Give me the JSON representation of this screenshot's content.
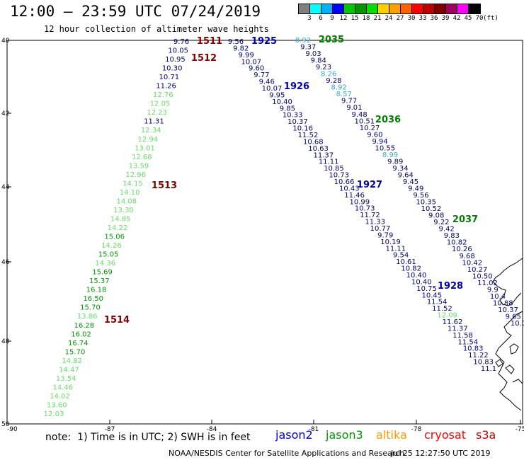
{
  "title": "12:00 – 23:59 UTC 07/24/2019",
  "subtitle": "12 hour collection of altimeter wave heights",
  "legend": {
    "colors": [
      "#808080",
      "#00ffff",
      "#00b0ff",
      "#0000ff",
      "#00c800",
      "#009600",
      "#00e000",
      "#ffd000",
      "#ffa000",
      "#ff6000",
      "#ff0000",
      "#c00000",
      "#800000",
      "#a00060",
      "#ff00ff",
      "#000000"
    ],
    "labels": [
      "3",
      "6",
      "9",
      "12",
      "15",
      "18",
      "21",
      "24",
      "27",
      "30",
      "33",
      "36",
      "39",
      "42",
      "45",
      "70",
      "(ft)"
    ]
  },
  "axes": {
    "lat_labels": [
      "40",
      "42",
      "44",
      "46",
      "48",
      "50"
    ],
    "lon_labels": [
      "-90",
      "-87",
      "-84",
      "-81",
      "-78",
      "-75"
    ]
  },
  "note": "note:  1) Time is in UTC; 2) SWH is in feet",
  "satellites": [
    {
      "name": "jason2",
      "color": "#0000cc"
    },
    {
      "name": "jason3",
      "color": "#009900"
    },
    {
      "name": "altika",
      "color": "#ff9900"
    },
    {
      "name": "cryosat",
      "color": "#ff0000"
    },
    {
      "name": "s3a",
      "color": "#cc0000"
    }
  ],
  "credit": "NOAA/NESDIS Center for Satellite Applications and Research",
  "generated": "Jul 25 12:27:50 UTC 2019",
  "time_labels": [
    {
      "text": "1511",
      "color": "#800000"
    },
    {
      "text": "1512",
      "color": "#800000"
    },
    {
      "text": "1513",
      "color": "#800000"
    },
    {
      "text": "1514",
      "color": "#800000"
    },
    {
      "text": "1925",
      "color": "#0000aa"
    },
    {
      "text": "1926",
      "color": "#0000aa"
    },
    {
      "text": "1927",
      "color": "#0000aa"
    },
    {
      "text": "1928",
      "color": "#0000aa"
    },
    {
      "text": "2035",
      "color": "#008000"
    },
    {
      "text": "2036",
      "color": "#008000"
    },
    {
      "text": "2037",
      "color": "#008000"
    }
  ],
  "tracks": [
    {
      "name": "track-1511",
      "values": [
        {
          "v": "9.76",
          "c": "#000080"
        },
        {
          "v": "10.05",
          "c": "#000080"
        },
        {
          "v": "10.95",
          "c": "#000080"
        },
        {
          "v": "10.30",
          "c": "#000080"
        },
        {
          "v": "10.71",
          "c": "#000080"
        },
        {
          "v": "11.26",
          "c": "#000080"
        },
        {
          "v": "12.76",
          "c": "#66dd66"
        },
        {
          "v": "12.05",
          "c": "#66dd66"
        },
        {
          "v": "12.23",
          "c": "#66dd66"
        },
        {
          "v": "11.31",
          "c": "#000080"
        },
        {
          "v": "12.34",
          "c": "#66dd66"
        },
        {
          "v": "12.94",
          "c": "#66dd66"
        },
        {
          "v": "13.01",
          "c": "#66dd66"
        },
        {
          "v": "12.68",
          "c": "#66dd66"
        },
        {
          "v": "13.59",
          "c": "#66dd66"
        },
        {
          "v": "12.96",
          "c": "#66dd66"
        },
        {
          "v": "14.15",
          "c": "#66dd66"
        },
        {
          "v": "14.10",
          "c": "#66dd66"
        },
        {
          "v": "14.08",
          "c": "#66dd66"
        },
        {
          "v": "13.30",
          "c": "#66dd66"
        },
        {
          "v": "14.85",
          "c": "#66dd66"
        },
        {
          "v": "14.22",
          "c": "#66dd66"
        },
        {
          "v": "15.06",
          "c": "#009900"
        },
        {
          "v": "14.26",
          "c": "#66dd66"
        },
        {
          "v": "15.05",
          "c": "#009900"
        },
        {
          "v": "14.36",
          "c": "#66dd66"
        },
        {
          "v": "15.69",
          "c": "#009900"
        },
        {
          "v": "15.37",
          "c": "#009900"
        },
        {
          "v": "16.18",
          "c": "#009900"
        },
        {
          "v": "16.50",
          "c": "#009900"
        },
        {
          "v": "15.70",
          "c": "#009900"
        },
        {
          "v": "13.86",
          "c": "#66dd66"
        },
        {
          "v": "16.28",
          "c": "#009900"
        },
        {
          "v": "16.02",
          "c": "#009900"
        },
        {
          "v": "16.74",
          "c": "#009900"
        },
        {
          "v": "15.70",
          "c": "#009900"
        },
        {
          "v": "14.82",
          "c": "#66dd66"
        },
        {
          "v": "14.47",
          "c": "#66dd66"
        },
        {
          "v": "13.54",
          "c": "#66dd66"
        },
        {
          "v": "14.46",
          "c": "#66dd66"
        },
        {
          "v": "14.02",
          "c": "#66dd66"
        },
        {
          "v": "13.60",
          "c": "#66dd66"
        },
        {
          "v": "12.03",
          "c": "#66dd66"
        }
      ]
    },
    {
      "name": "track-1925",
      "values": [
        {
          "v": "9.56",
          "c": "#000080"
        },
        {
          "v": "9.82",
          "c": "#000080"
        },
        {
          "v": "9.99",
          "c": "#000080"
        },
        {
          "v": "10.07",
          "c": "#000080"
        },
        {
          "v": "9.60",
          "c": "#000080"
        },
        {
          "v": "9.77",
          "c": "#000080"
        },
        {
          "v": "9.46",
          "c": "#000080"
        },
        {
          "v": "10.07",
          "c": "#000080"
        },
        {
          "v": "9.95",
          "c": "#000080"
        },
        {
          "v": "10.40",
          "c": "#000080"
        },
        {
          "v": "9.85",
          "c": "#000080"
        },
        {
          "v": "10.33",
          "c": "#000080"
        },
        {
          "v": "10.37",
          "c": "#000080"
        },
        {
          "v": "10.16",
          "c": "#000080"
        },
        {
          "v": "11.52",
          "c": "#000080"
        },
        {
          "v": "10.68",
          "c": "#000080"
        },
        {
          "v": "10.63",
          "c": "#000080"
        },
        {
          "v": "11.37",
          "c": "#000080"
        },
        {
          "v": "11.11",
          "c": "#000080"
        },
        {
          "v": "10.85",
          "c": "#000080"
        },
        {
          "v": "10.73",
          "c": "#000080"
        },
        {
          "v": "10.66",
          "c": "#000080"
        },
        {
          "v": "10.43",
          "c": "#000080"
        },
        {
          "v": "11.46",
          "c": "#000080"
        },
        {
          "v": "10.99",
          "c": "#000080"
        },
        {
          "v": "10.73",
          "c": "#000080"
        },
        {
          "v": "11.72",
          "c": "#000080"
        },
        {
          "v": "11.33",
          "c": "#000080"
        },
        {
          "v": "10.77",
          "c": "#000080"
        },
        {
          "v": "9.79",
          "c": "#000080"
        },
        {
          "v": "10.19",
          "c": "#000080"
        },
        {
          "v": "11.11",
          "c": "#000080"
        },
        {
          "v": "9.54",
          "c": "#000080"
        },
        {
          "v": "10.61",
          "c": "#000080"
        },
        {
          "v": "10.82",
          "c": "#000080"
        },
        {
          "v": "10.40",
          "c": "#000080"
        },
        {
          "v": "10.40",
          "c": "#000080"
        },
        {
          "v": "10.75",
          "c": "#000080"
        },
        {
          "v": "10.45",
          "c": "#000080"
        },
        {
          "v": "11.54",
          "c": "#000080"
        },
        {
          "v": "11.52",
          "c": "#000080"
        },
        {
          "v": "12.09",
          "c": "#66dd66"
        },
        {
          "v": "11.62",
          "c": "#000080"
        },
        {
          "v": "11.37",
          "c": "#000080"
        },
        {
          "v": "11.58",
          "c": "#000080"
        },
        {
          "v": "11.54",
          "c": "#000080"
        },
        {
          "v": "10.83",
          "c": "#000080"
        },
        {
          "v": "11.22",
          "c": "#000080"
        },
        {
          "v": "10.83",
          "c": "#000080"
        },
        {
          "v": "11.1",
          "c": "#000080"
        }
      ]
    },
    {
      "name": "track-2035",
      "values": [
        {
          "v": "8.92",
          "c": "#33aadd"
        },
        {
          "v": "9.37",
          "c": "#000080"
        },
        {
          "v": "9.03",
          "c": "#000080"
        },
        {
          "v": "9.84",
          "c": "#000080"
        },
        {
          "v": "9.23",
          "c": "#000080"
        },
        {
          "v": "8.26",
          "c": "#33aadd"
        },
        {
          "v": "9.28",
          "c": "#000080"
        },
        {
          "v": "8.92",
          "c": "#33aadd"
        },
        {
          "v": "8.57",
          "c": "#33aadd"
        },
        {
          "v": "9.77",
          "c": "#000080"
        },
        {
          "v": "9.01",
          "c": "#000080"
        },
        {
          "v": "9.48",
          "c": "#000080"
        },
        {
          "v": "10.51",
          "c": "#000080"
        },
        {
          "v": "10.27",
          "c": "#000080"
        },
        {
          "v": "9.60",
          "c": "#000080"
        },
        {
          "v": "9.94",
          "c": "#000080"
        },
        {
          "v": "10.55",
          "c": "#000080"
        },
        {
          "v": "8.99",
          "c": "#33aadd"
        },
        {
          "v": "9.89",
          "c": "#000080"
        },
        {
          "v": "9.34",
          "c": "#000080"
        },
        {
          "v": "9.64",
          "c": "#000080"
        },
        {
          "v": "9.45",
          "c": "#000080"
        },
        {
          "v": "9.49",
          "c": "#000080"
        },
        {
          "v": "9.56",
          "c": "#000080"
        },
        {
          "v": "10.35",
          "c": "#000080"
        },
        {
          "v": "10.52",
          "c": "#000080"
        },
        {
          "v": "9.08",
          "c": "#000080"
        },
        {
          "v": "9.22",
          "c": "#000080"
        },
        {
          "v": "9.42",
          "c": "#000080"
        },
        {
          "v": "9.83",
          "c": "#000080"
        },
        {
          "v": "10.82",
          "c": "#000080"
        },
        {
          "v": "10.26",
          "c": "#000080"
        },
        {
          "v": "9.68",
          "c": "#000080"
        },
        {
          "v": "10.42",
          "c": "#000080"
        },
        {
          "v": "10.27",
          "c": "#000080"
        },
        {
          "v": "10.50",
          "c": "#000080"
        },
        {
          "v": "11.02",
          "c": "#000080"
        },
        {
          "v": "9.9",
          "c": "#000080"
        },
        {
          "v": "10.4",
          "c": "#000080"
        },
        {
          "v": "10.88",
          "c": "#000080"
        },
        {
          "v": "10.37",
          "c": "#000080"
        },
        {
          "v": "9.65",
          "c": "#000080"
        },
        {
          "v": "10.0",
          "c": "#000080"
        }
      ]
    }
  ]
}
